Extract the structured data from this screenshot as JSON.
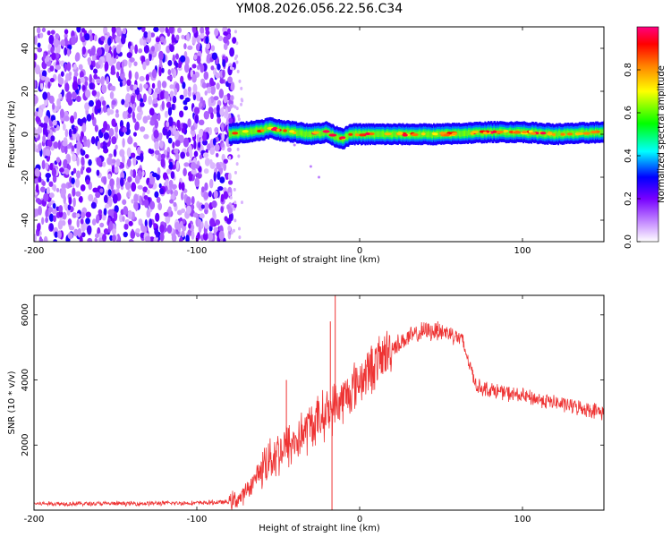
{
  "title": "YM08.2026.056.22.56.C34",
  "chart_data": [
    {
      "type": "heatmap",
      "panel": "spectrogram",
      "xlabel": "Height of straight line (km)",
      "ylabel": "Frequency (Hz)",
      "xlim": [
        -200,
        150
      ],
      "ylim": [
        -50,
        50
      ],
      "xticks": [
        -200,
        -100,
        0,
        100
      ],
      "xtick_labels": [
        "-200",
        "-100",
        "0",
        "100"
      ],
      "yticks": [
        -40,
        -20,
        0,
        20,
        40
      ],
      "ytick_labels": [
        "-40",
        "-20",
        "0",
        "20",
        "40"
      ],
      "colorbar": {
        "label": "Normalized spectral amplitude",
        "range": [
          0,
          1
        ],
        "ticks": [
          0.0,
          0.2,
          0.4,
          0.6,
          0.8
        ],
        "tick_labels": [
          "0.0",
          "0.2",
          "0.4",
          "0.6",
          "0.8"
        ],
        "colors": [
          "#ffffff",
          "#cc99ff",
          "#6a00ff",
          "#0000ff",
          "#00ffff",
          "#00ff00",
          "#ffff00",
          "#ff8000",
          "#ff0000",
          "#ff0080"
        ]
      },
      "noise_region": {
        "x_range": [
          -200,
          -80
        ],
        "freq_range": [
          -50,
          50
        ],
        "typical_amplitude": 0.15
      },
      "signal_track": {
        "x_range": [
          -80,
          150
        ],
        "center_freq": [
          [
            -80,
            0
          ],
          [
            -70,
            1
          ],
          [
            -60,
            2
          ],
          [
            -55,
            3
          ],
          [
            -50,
            2
          ],
          [
            -40,
            1
          ],
          [
            -30,
            0
          ],
          [
            -20,
            1
          ],
          [
            -15,
            -1
          ],
          [
            -10,
            -2
          ],
          [
            -5,
            0
          ],
          [
            0,
            0
          ],
          [
            20,
            0
          ],
          [
            50,
            0
          ],
          [
            80,
            1
          ],
          [
            100,
            1
          ],
          [
            120,
            0
          ],
          [
            150,
            1
          ]
        ],
        "width_hz": 3,
        "peak_amplitude": 0.95
      },
      "faint_tail": [
        [
          -40,
          -5
        ],
        [
          -30,
          -15
        ],
        [
          -25,
          -20
        ]
      ]
    },
    {
      "type": "line",
      "panel": "snr",
      "xlabel": "Height of straight line (km)",
      "ylabel": "SNR (10 * v/v)",
      "xlim": [
        -200,
        150
      ],
      "ylim": [
        0,
        6600
      ],
      "xticks": [
        -200,
        -100,
        0,
        100
      ],
      "xtick_labels": [
        "-200",
        "-100",
        "0",
        "100"
      ],
      "yticks": [
        2000,
        4000,
        6000
      ],
      "ytick_labels": [
        "2000",
        "4000",
        "6000"
      ],
      "color": "#ee3333",
      "envelope": [
        [
          -200,
          200
        ],
        [
          -150,
          200
        ],
        [
          -100,
          220
        ],
        [
          -80,
          250
        ],
        [
          -72,
          400
        ],
        [
          -65,
          900
        ],
        [
          -58,
          1500
        ],
        [
          -50,
          1800
        ],
        [
          -40,
          2100
        ],
        [
          -30,
          2600
        ],
        [
          -20,
          3000
        ],
        [
          -10,
          3400
        ],
        [
          0,
          4000
        ],
        [
          10,
          4500
        ],
        [
          20,
          5000
        ],
        [
          30,
          5300
        ],
        [
          40,
          5500
        ],
        [
          50,
          5500
        ],
        [
          58,
          5400
        ],
        [
          63,
          5200
        ],
        [
          68,
          4400
        ],
        [
          72,
          3800
        ],
        [
          80,
          3700
        ],
        [
          100,
          3500
        ],
        [
          120,
          3300
        ],
        [
          140,
          3100
        ],
        [
          150,
          3000
        ]
      ],
      "spikes": [
        {
          "x": -18,
          "y": 5800
        },
        {
          "x": -15,
          "y": 6600
        },
        {
          "x": -17,
          "y": 0
        },
        {
          "x": -45,
          "y": 4000
        },
        {
          "x": 48,
          "y": 5800
        }
      ]
    }
  ]
}
